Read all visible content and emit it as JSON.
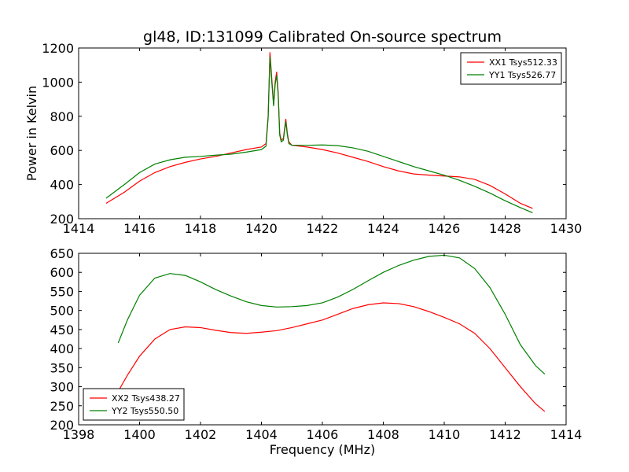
{
  "figure": {
    "title": "gl48, ID:131099 Calibrated On-source spectrum"
  },
  "chart_data": [
    {
      "type": "line",
      "title": "gl48, ID:131099 Calibrated On-source spectrum",
      "xlabel": "",
      "ylabel": "Power in Kelvin",
      "xlim": [
        1414,
        1430
      ],
      "ylim": [
        200,
        1200
      ],
      "xticks": [
        "1414",
        "1416",
        "1418",
        "1420",
        "1422",
        "1424",
        "1426",
        "1428",
        "1430"
      ],
      "yticks": [
        "200",
        "400",
        "600",
        "800",
        "1000",
        "1200"
      ],
      "grid": false,
      "legend_position": "top-right",
      "series": [
        {
          "name": "XX1 Tsys512.33",
          "color": "#ff0000",
          "x": [
            1414.9,
            1415.5,
            1416.0,
            1416.5,
            1417.0,
            1417.5,
            1418.0,
            1418.5,
            1419.0,
            1419.5,
            1420.0,
            1420.15,
            1420.22,
            1420.28,
            1420.34,
            1420.4,
            1420.45,
            1420.5,
            1420.55,
            1420.6,
            1420.65,
            1420.72,
            1420.8,
            1420.85,
            1420.9,
            1421.0,
            1421.5,
            1422.0,
            1422.5,
            1423.0,
            1423.5,
            1424.0,
            1424.5,
            1425.0,
            1425.5,
            1426.0,
            1426.5,
            1427.0,
            1427.5,
            1428.0,
            1428.5,
            1428.9
          ],
          "y": [
            290,
            355,
            420,
            470,
            505,
            530,
            550,
            565,
            585,
            605,
            620,
            640,
            800,
            1175,
            1020,
            870,
            1000,
            1060,
            940,
            700,
            660,
            670,
            785,
            700,
            650,
            630,
            620,
            605,
            585,
            560,
            535,
            505,
            480,
            462,
            455,
            450,
            445,
            430,
            395,
            345,
            290,
            260
          ]
        },
        {
          "name": "YY1 Tsys526.77",
          "color": "#008000",
          "x": [
            1414.9,
            1415.5,
            1416.0,
            1416.5,
            1417.0,
            1417.5,
            1418.0,
            1418.5,
            1419.0,
            1419.5,
            1420.0,
            1420.15,
            1420.22,
            1420.28,
            1420.34,
            1420.4,
            1420.45,
            1420.5,
            1420.55,
            1420.6,
            1420.65,
            1420.72,
            1420.8,
            1420.85,
            1420.9,
            1421.0,
            1421.5,
            1422.0,
            1422.5,
            1423.0,
            1423.5,
            1424.0,
            1424.5,
            1425.0,
            1425.5,
            1426.0,
            1426.5,
            1427.0,
            1427.5,
            1428.0,
            1428.5,
            1428.9
          ],
          "y": [
            320,
            400,
            470,
            520,
            545,
            560,
            565,
            572,
            578,
            590,
            605,
            625,
            790,
            1150,
            1000,
            860,
            985,
            1040,
            925,
            690,
            650,
            660,
            770,
            690,
            640,
            630,
            630,
            632,
            628,
            615,
            595,
            565,
            535,
            505,
            480,
            455,
            425,
            390,
            350,
            305,
            265,
            235
          ]
        }
      ]
    },
    {
      "type": "line",
      "title": "",
      "xlabel": "Frequency (MHz)",
      "ylabel": "",
      "xlim": [
        1398,
        1414
      ],
      "ylim": [
        200,
        650
      ],
      "xticks": [
        "1398",
        "1400",
        "1402",
        "1404",
        "1406",
        "1408",
        "1410",
        "1412",
        "1414"
      ],
      "yticks": [
        "200",
        "250",
        "300",
        "350",
        "400",
        "450",
        "500",
        "550",
        "600",
        "650"
      ],
      "grid": false,
      "legend_position": "bottom-left",
      "series": [
        {
          "name": "XX2 Tsys438.27",
          "color": "#ff0000",
          "x": [
            1399.3,
            1399.6,
            1400.0,
            1400.5,
            1401.0,
            1401.5,
            1402.0,
            1402.5,
            1403.0,
            1403.5,
            1404.0,
            1404.5,
            1405.0,
            1405.5,
            1406.0,
            1406.5,
            1407.0,
            1407.5,
            1408.0,
            1408.5,
            1409.0,
            1409.5,
            1410.0,
            1410.5,
            1411.0,
            1411.5,
            1412.0,
            1412.5,
            1413.0,
            1413.3
          ],
          "y": [
            288,
            330,
            380,
            425,
            450,
            457,
            455,
            448,
            442,
            440,
            443,
            447,
            455,
            465,
            475,
            490,
            505,
            515,
            520,
            518,
            510,
            497,
            482,
            465,
            440,
            400,
            350,
            300,
            255,
            235
          ]
        },
        {
          "name": "YY2 Tsys550.50",
          "color": "#008000",
          "x": [
            1399.3,
            1399.6,
            1400.0,
            1400.5,
            1401.0,
            1401.5,
            1402.0,
            1402.5,
            1403.0,
            1403.5,
            1404.0,
            1404.5,
            1405.0,
            1405.5,
            1406.0,
            1406.5,
            1407.0,
            1407.5,
            1408.0,
            1408.5,
            1409.0,
            1409.5,
            1410.0,
            1410.5,
            1411.0,
            1411.5,
            1412.0,
            1412.5,
            1413.0,
            1413.3
          ],
          "y": [
            415,
            475,
            540,
            585,
            597,
            592,
            575,
            555,
            538,
            523,
            513,
            509,
            510,
            513,
            520,
            535,
            555,
            578,
            600,
            618,
            632,
            642,
            645,
            638,
            610,
            560,
            490,
            410,
            355,
            333
          ]
        }
      ]
    }
  ]
}
